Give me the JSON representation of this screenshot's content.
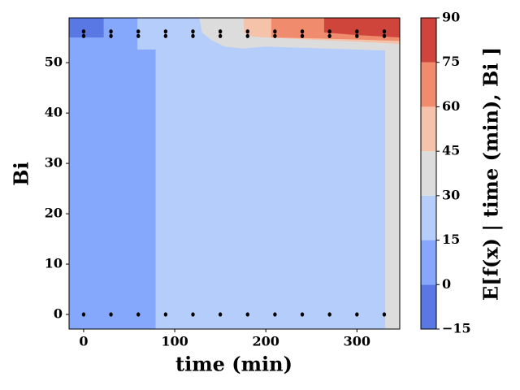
{
  "chart_data": {
    "type": "contour",
    "xlabel": "time (min)",
    "ylabel": "Bi",
    "colorbar_label": "E[f(x) | time (min), Bi ]",
    "xlim": [
      -16,
      347
    ],
    "ylim": [
      -2.9,
      58.9
    ],
    "xticks": [
      0,
      100,
      200,
      300
    ],
    "yticks": [
      0,
      10,
      20,
      30,
      40,
      50
    ],
    "levels": [
      -15,
      0,
      15,
      30,
      45,
      60,
      75,
      90
    ],
    "colors": [
      "#5a78e4",
      "#85a8fc",
      "#b5cdfa",
      "#dddcdc",
      "#f5c2aa",
      "#f08b6e",
      "#cf453c"
    ],
    "cticks": [
      {
        "value": -15,
        "label": "−15"
      },
      0,
      15,
      30,
      45,
      60,
      75,
      90
    ],
    "background_band": 2,
    "regions": [
      {
        "band": 1,
        "x": [
          -16,
          79,
          79,
          59,
          59,
          -16
        ],
        "y": [
          -2.9,
          -2.9,
          52.6,
          52.6,
          58.9,
          58.9
        ]
      },
      {
        "band": 0,
        "x": [
          -16,
          22,
          22,
          -16
        ],
        "y": [
          55,
          55,
          58.9,
          58.9
        ]
      },
      {
        "band": 3,
        "x": [
          127,
          130,
          140,
          155,
          175,
          200,
          250,
          300,
          331,
          331,
          347,
          347
        ],
        "y": [
          58.9,
          56,
          54.5,
          53.2,
          52.8,
          53.2,
          52.9,
          52.6,
          52.4,
          -2.9,
          -2.9,
          58.9
        ]
      },
      {
        "band": 4,
        "x": [
          176,
          176,
          185,
          200,
          260,
          320,
          347,
          347
        ],
        "y": [
          58.9,
          56,
          55.2,
          55,
          54.5,
          54,
          53.7,
          58.9
        ]
      },
      {
        "band": 5,
        "x": [
          206,
          206,
          260,
          300,
          347,
          347
        ],
        "y": [
          58.9,
          55,
          54.8,
          54.6,
          54.3,
          58.9
        ]
      },
      {
        "band": 6,
        "x": [
          264,
          264,
          300,
          347,
          347
        ],
        "y": [
          58.9,
          56,
          55.5,
          55,
          58.9
        ]
      }
    ],
    "points": {
      "color": "#000000",
      "x": [
        0,
        30,
        60,
        90,
        120,
        150,
        180,
        210,
        240,
        270,
        300,
        330,
        0,
        30,
        60,
        90,
        120,
        150,
        180,
        210,
        240,
        270,
        300,
        330,
        0,
        30,
        60,
        90,
        120,
        150,
        180,
        210,
        240,
        270,
        300,
        330
      ],
      "y": [
        0,
        0,
        0,
        0,
        0,
        0,
        0,
        0,
        0,
        0,
        0,
        0,
        55.3,
        55.3,
        55.3,
        55.3,
        55.3,
        55.3,
        55.3,
        55.3,
        55.3,
        55.3,
        55.3,
        55.3,
        56.2,
        56.2,
        56.2,
        56.2,
        56.2,
        56.2,
        56.2,
        56.2,
        56.2,
        56.2,
        56.2,
        56.2
      ]
    }
  }
}
